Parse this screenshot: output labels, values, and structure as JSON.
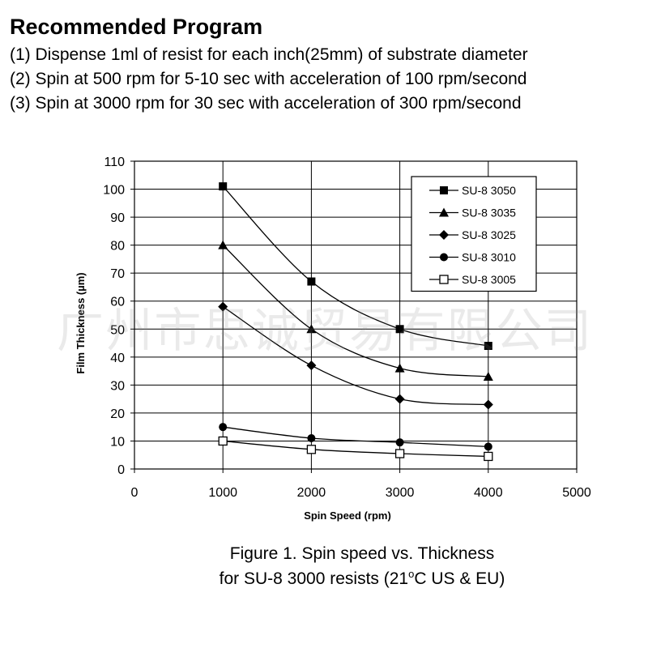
{
  "header": {
    "title": "Recommended Program",
    "steps": [
      "(1) Dispense 1ml of resist for each inch(25mm) of substrate diameter",
      "(2) Spin at 500 rpm for 5-10 sec with acceleration of 100 rpm/second",
      "(3) Spin at 3000 rpm for 30 sec with acceleration of 300 rpm/second"
    ]
  },
  "chart_data": {
    "type": "line",
    "x_label": "Spin Speed (rpm)",
    "y_label": "Film Thickness (µm)",
    "x": [
      1000,
      2000,
      3000,
      4000
    ],
    "xlim": [
      0,
      5000
    ],
    "xticks": [
      0,
      1000,
      2000,
      3000,
      4000,
      5000
    ],
    "ylim": [
      0,
      110
    ],
    "yticks": [
      0,
      10,
      20,
      30,
      40,
      50,
      60,
      70,
      80,
      90,
      100,
      110
    ],
    "grid": true,
    "legend": "upper right",
    "series": [
      {
        "name": "SU-8 3050",
        "color": "#000000",
        "marker": "square",
        "values": [
          101,
          67,
          50,
          44
        ]
      },
      {
        "name": "SU-8 3035",
        "color": "#000000",
        "marker": "triangle",
        "values": [
          80,
          50,
          36,
          33
        ]
      },
      {
        "name": "SU-8 3025",
        "color": "#000000",
        "marker": "diamond",
        "values": [
          58,
          37,
          25,
          23
        ]
      },
      {
        "name": "SU-8 3010",
        "color": "#000000",
        "marker": "circle",
        "values": [
          15,
          11,
          9.5,
          8
        ]
      },
      {
        "name": "SU-8 3005",
        "color": "#000000",
        "marker": "open-square",
        "values": [
          10,
          7,
          5.5,
          4.5
        ]
      }
    ]
  },
  "caption": {
    "line1": "Figure 1. Spin speed vs. Thickness",
    "line2": [
      "for SU-8 3000 resists (21",
      "o",
      "C US & EU)"
    ]
  },
  "watermark": "广州市思诚贸易有限公司"
}
